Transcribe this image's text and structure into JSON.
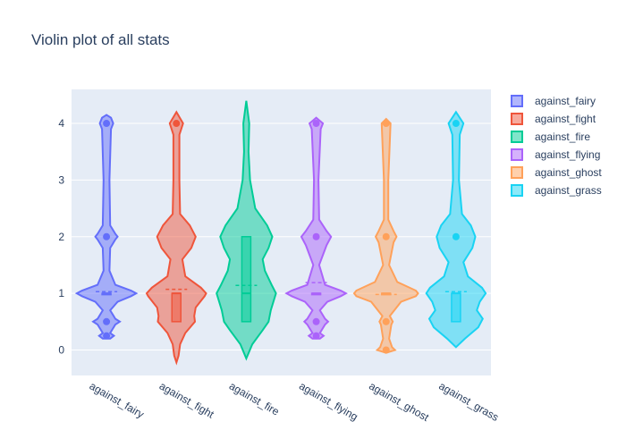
{
  "chart_data": {
    "type": "violin",
    "title": "Violin plot of all stats",
    "xlabel": "",
    "ylabel": "",
    "ylim": [
      -0.45,
      4.6
    ],
    "yticks": [
      0,
      1,
      2,
      3,
      4
    ],
    "grid": true,
    "legend_position": "right",
    "series": [
      {
        "name": "against_fairy",
        "color": "#636efa",
        "q1": 1,
        "median": 1,
        "q3": 1,
        "mean": 1.03,
        "outliers": [
          0.25,
          0.5,
          2,
          4
        ],
        "density": [
          [
            0.2,
            0.05
          ],
          [
            0.25,
            0.1
          ],
          [
            0.3,
            0.05
          ],
          [
            0.45,
            0.12
          ],
          [
            0.5,
            0.18
          ],
          [
            0.55,
            0.12
          ],
          [
            0.7,
            0.05
          ],
          [
            0.85,
            0.15
          ],
          [
            0.95,
            0.33
          ],
          [
            1,
            0.4
          ],
          [
            1.05,
            0.33
          ],
          [
            1.15,
            0.12
          ],
          [
            1.4,
            0.04
          ],
          [
            1.8,
            0.05
          ],
          [
            1.95,
            0.12
          ],
          [
            2,
            0.15
          ],
          [
            2.05,
            0.12
          ],
          [
            2.2,
            0.05
          ],
          [
            3,
            0.04
          ],
          [
            3.9,
            0.06
          ],
          [
            4,
            0.09
          ],
          [
            4.1,
            0.06
          ],
          [
            4.15,
            0
          ]
        ]
      },
      {
        "name": "against_fight",
        "color": "#ef553b",
        "q1": 0.5,
        "median": 1,
        "q3": 1,
        "mean": 1.07,
        "outliers": [
          4
        ],
        "density": [
          [
            -0.22,
            0
          ],
          [
            -0.1,
            0.03
          ],
          [
            0.1,
            0.05
          ],
          [
            0.3,
            0.12
          ],
          [
            0.5,
            0.25
          ],
          [
            0.6,
            0.24
          ],
          [
            0.75,
            0.26
          ],
          [
            0.95,
            0.38
          ],
          [
            1,
            0.4
          ],
          [
            1.1,
            0.33
          ],
          [
            1.3,
            0.12
          ],
          [
            1.6,
            0.08
          ],
          [
            1.8,
            0.2
          ],
          [
            2,
            0.26
          ],
          [
            2.2,
            0.18
          ],
          [
            2.4,
            0.05
          ],
          [
            3,
            0.04
          ],
          [
            3.8,
            0.04
          ],
          [
            4,
            0.09
          ],
          [
            4.2,
            0
          ]
        ]
      },
      {
        "name": "against_fire",
        "color": "#00cc96",
        "q1": 0.5,
        "median": 1,
        "q3": 2,
        "mean": 1.14,
        "outliers": [],
        "density": [
          [
            -0.15,
            0
          ],
          [
            0.1,
            0.08
          ],
          [
            0.35,
            0.22
          ],
          [
            0.5,
            0.3
          ],
          [
            0.7,
            0.33
          ],
          [
            1,
            0.4
          ],
          [
            1.15,
            0.34
          ],
          [
            1.4,
            0.25
          ],
          [
            1.6,
            0.22
          ],
          [
            1.8,
            0.3
          ],
          [
            2,
            0.35
          ],
          [
            2.2,
            0.28
          ],
          [
            2.5,
            0.12
          ],
          [
            3,
            0.05
          ],
          [
            3.5,
            0.03
          ],
          [
            4,
            0.04
          ],
          [
            4.4,
            0
          ]
        ]
      },
      {
        "name": "against_flying",
        "color": "#ab63fa",
        "q1": 1,
        "median": 1,
        "q3": 1,
        "mean": 1.19,
        "outliers": [
          0.25,
          0.5,
          2,
          4
        ],
        "density": [
          [
            0.2,
            0.05
          ],
          [
            0.25,
            0.1
          ],
          [
            0.3,
            0.05
          ],
          [
            0.45,
            0.12
          ],
          [
            0.5,
            0.16
          ],
          [
            0.55,
            0.12
          ],
          [
            0.7,
            0.05
          ],
          [
            0.85,
            0.15
          ],
          [
            0.95,
            0.33
          ],
          [
            1,
            0.4
          ],
          [
            1.05,
            0.33
          ],
          [
            1.15,
            0.12
          ],
          [
            1.5,
            0.04
          ],
          [
            1.85,
            0.14
          ],
          [
            2,
            0.2
          ],
          [
            2.1,
            0.14
          ],
          [
            2.3,
            0.04
          ],
          [
            3,
            0.03
          ],
          [
            3.9,
            0.06
          ],
          [
            4,
            0.09
          ],
          [
            4.1,
            0
          ]
        ]
      },
      {
        "name": "against_ghost",
        "color": "#ffa15a",
        "q1": 1,
        "median": 1,
        "q3": 1,
        "mean": 0.98,
        "outliers": [
          0,
          2,
          4,
          0.5
        ],
        "density": [
          [
            -0.05,
            0
          ],
          [
            0,
            0.12
          ],
          [
            0.05,
            0.08
          ],
          [
            0.2,
            0.04
          ],
          [
            0.45,
            0.07
          ],
          [
            0.5,
            0.09
          ],
          [
            0.6,
            0.05
          ],
          [
            0.85,
            0.2
          ],
          [
            0.95,
            0.4
          ],
          [
            1,
            0.43
          ],
          [
            1.05,
            0.4
          ],
          [
            1.2,
            0.15
          ],
          [
            1.5,
            0.04
          ],
          [
            1.9,
            0.1
          ],
          [
            2,
            0.14
          ],
          [
            2.1,
            0.1
          ],
          [
            2.3,
            0.03
          ],
          [
            3,
            0.03
          ],
          [
            4,
            0.06
          ],
          [
            4.08,
            0
          ]
        ]
      },
      {
        "name": "against_grass",
        "color": "#19d3f3",
        "q1": 0.5,
        "median": 1,
        "q3": 1,
        "mean": 1.03,
        "outliers": [
          4,
          2
        ],
        "density": [
          [
            0.05,
            0
          ],
          [
            0.2,
            0.12
          ],
          [
            0.4,
            0.3
          ],
          [
            0.55,
            0.36
          ],
          [
            0.7,
            0.28
          ],
          [
            0.85,
            0.32
          ],
          [
            1,
            0.4
          ],
          [
            1.1,
            0.35
          ],
          [
            1.3,
            0.16
          ],
          [
            1.55,
            0.1
          ],
          [
            1.8,
            0.22
          ],
          [
            2,
            0.26
          ],
          [
            2.2,
            0.2
          ],
          [
            2.4,
            0.08
          ],
          [
            3,
            0.04
          ],
          [
            3.8,
            0.05
          ],
          [
            4,
            0.1
          ],
          [
            4.2,
            0
          ]
        ]
      }
    ]
  }
}
